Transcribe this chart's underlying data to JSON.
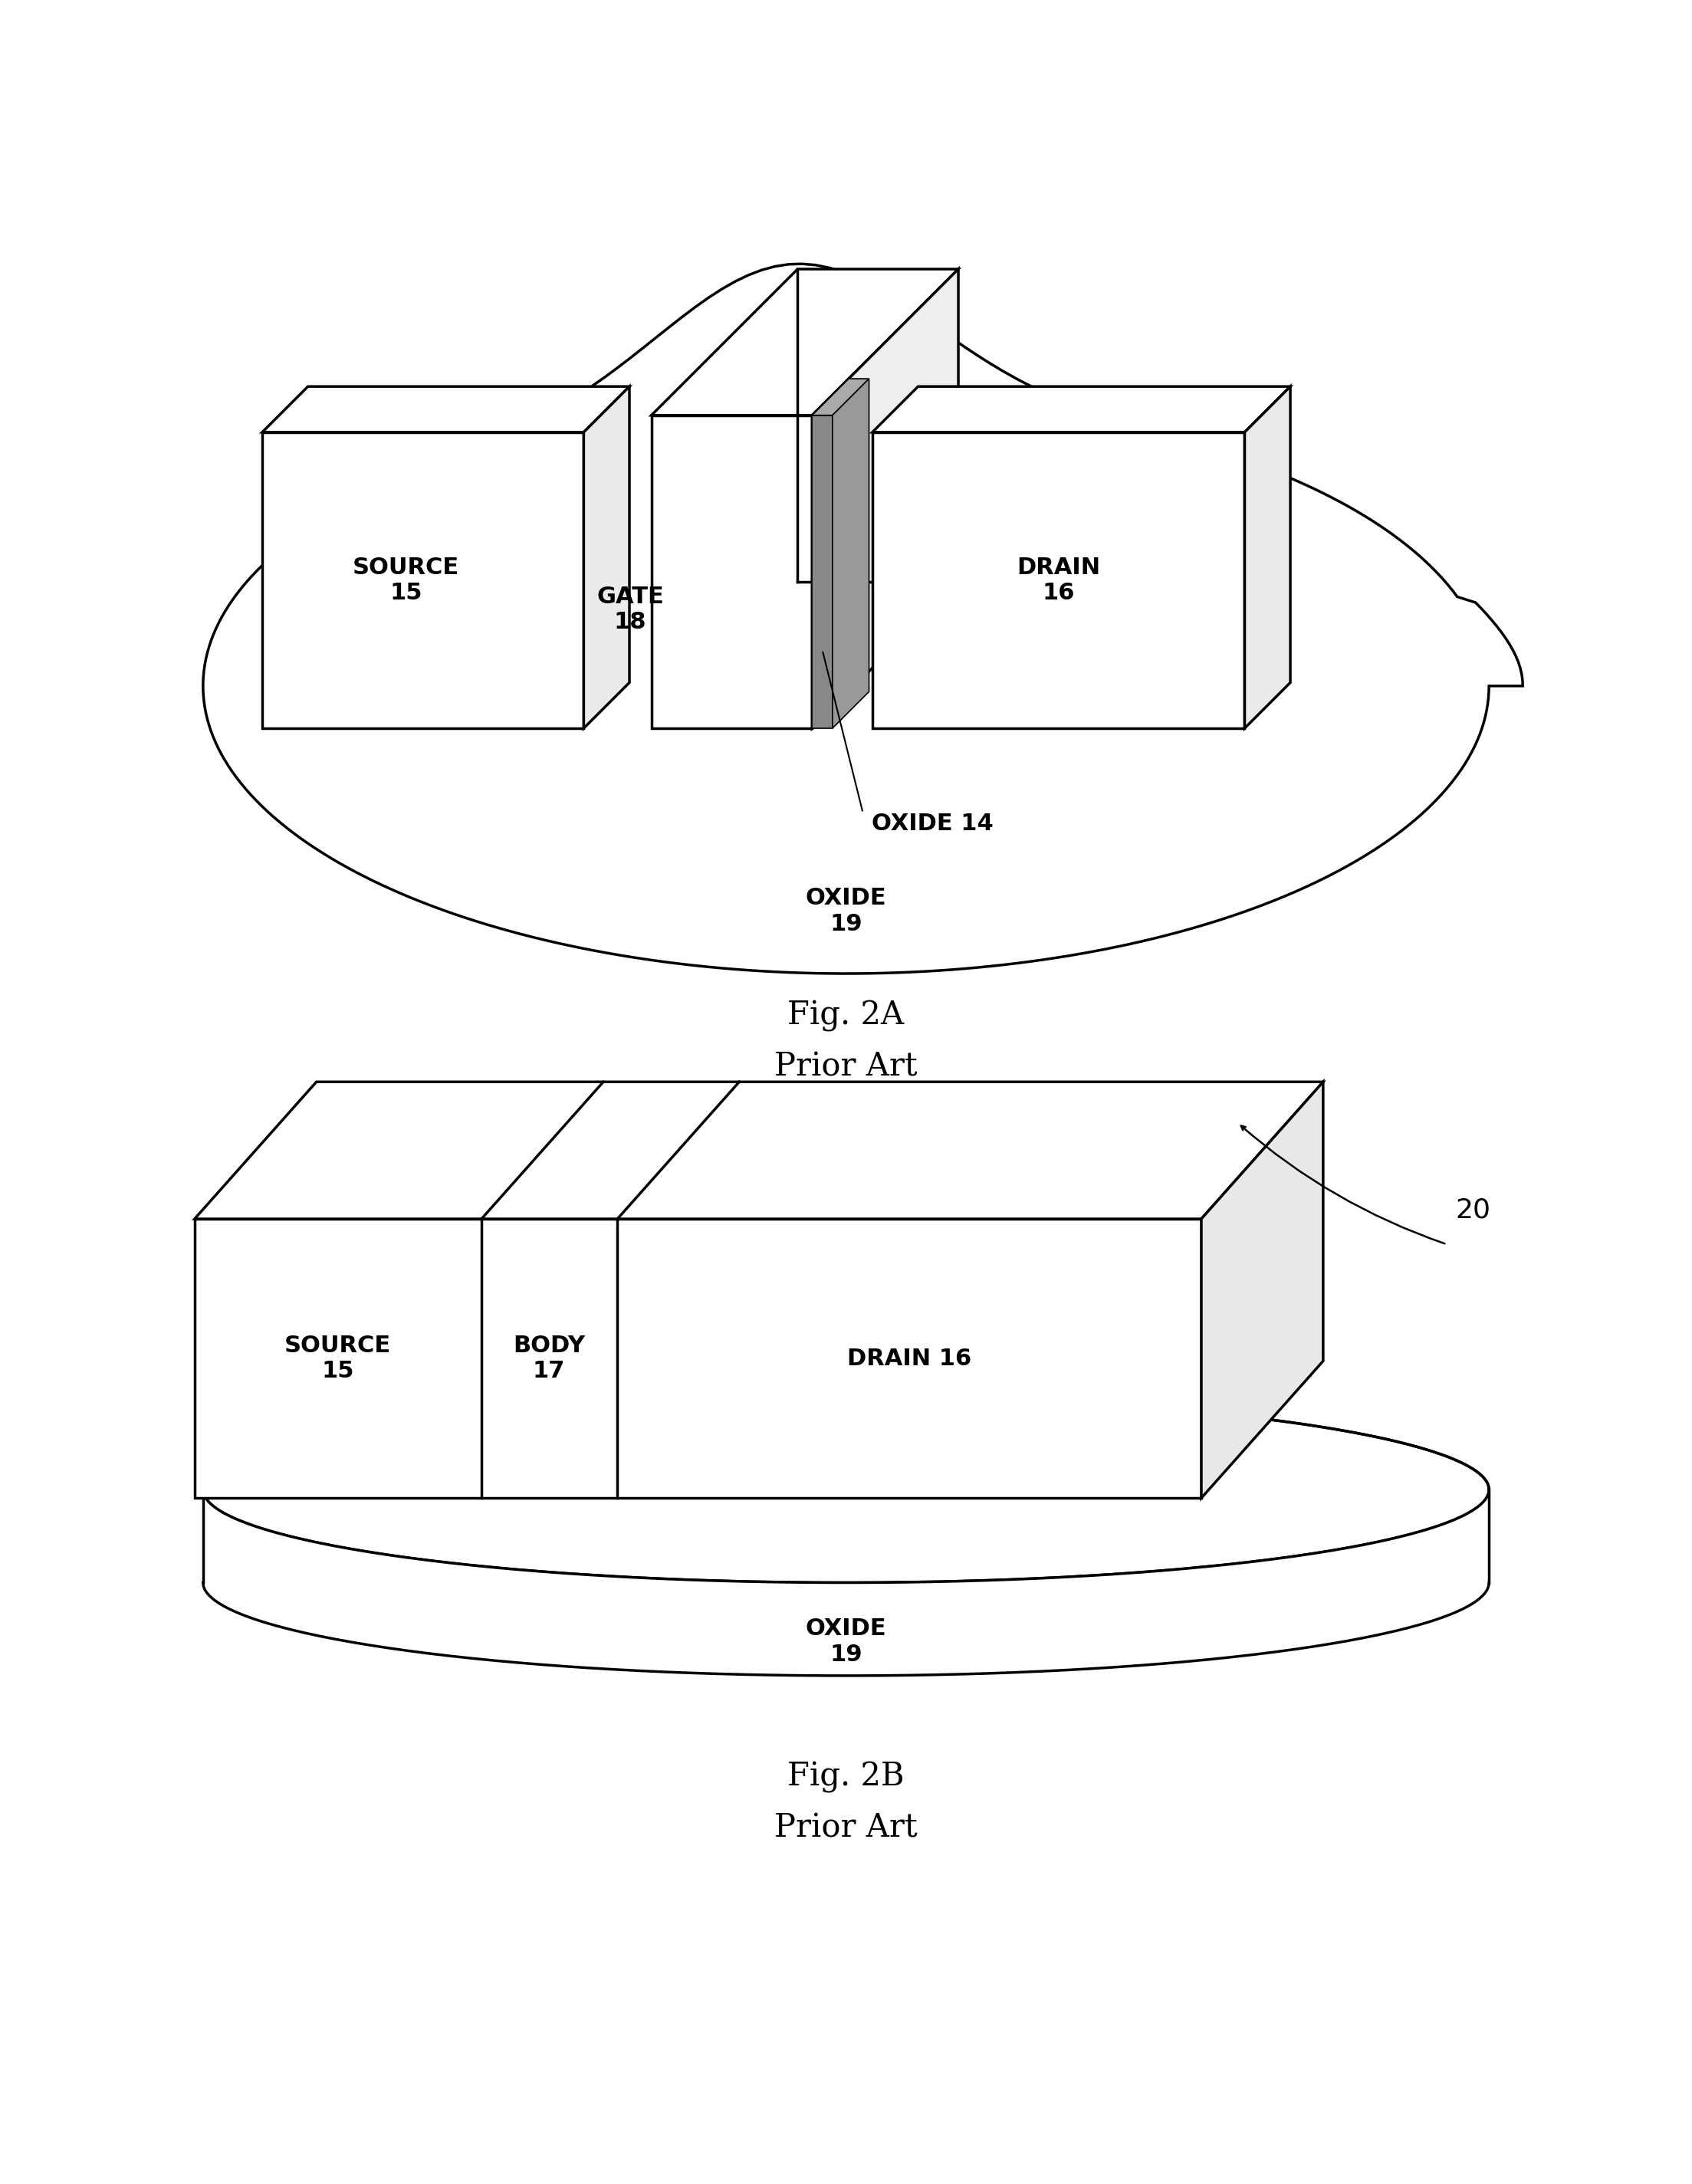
{
  "fig_width": 22.07,
  "fig_height": 28.49,
  "bg_color": "#ffffff",
  "line_color": "#000000",
  "lw_main": 2.5,
  "font_size_label": 22,
  "font_size_caption": 30,
  "font_size_caption_sub": 30,
  "font_size_ref": 22,
  "fig2a_caption": "Fig. 2A",
  "fig2a_sub": "Prior Art",
  "fig2b_caption": "Fig. 2B",
  "fig2b_sub": "Prior Art",
  "label_source": "SOURCE\n15",
  "label_gate": "GATE\n18",
  "label_drain": "DRAIN\n16",
  "label_oxide14": "OXIDE 14",
  "label_oxide19_a": "OXIDE\n19",
  "label_oxide19_b": "OXIDE\n19",
  "label_body": "BODY\n17",
  "label_drain16": "DRAIN 16",
  "label_20": "20"
}
